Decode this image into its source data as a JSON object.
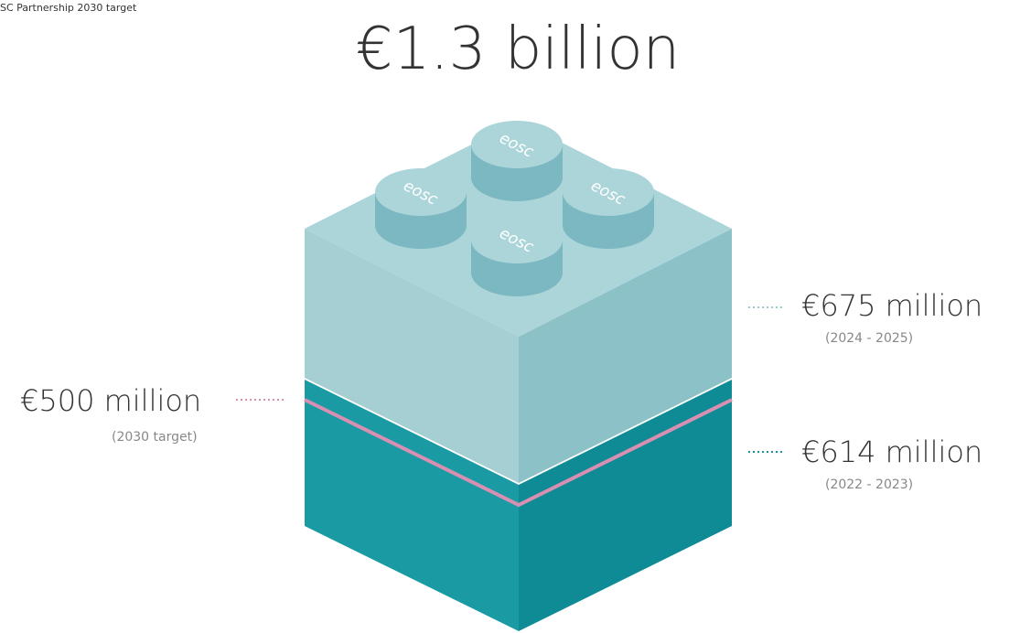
{
  "header": {
    "caption": "SC Partnership 2030 target",
    "title": "€1.3 billion"
  },
  "labels": {
    "upper": {
      "amount": "€675 million",
      "period": "(2024 - 2025)"
    },
    "target": {
      "amount": "€500 million",
      "period": "(2030 target)"
    },
    "lower": {
      "amount": "€614 million",
      "period": "(2022 - 2023)"
    }
  },
  "studs": [
    "eosc",
    "eosc",
    "eosc",
    "eosc"
  ]
}
